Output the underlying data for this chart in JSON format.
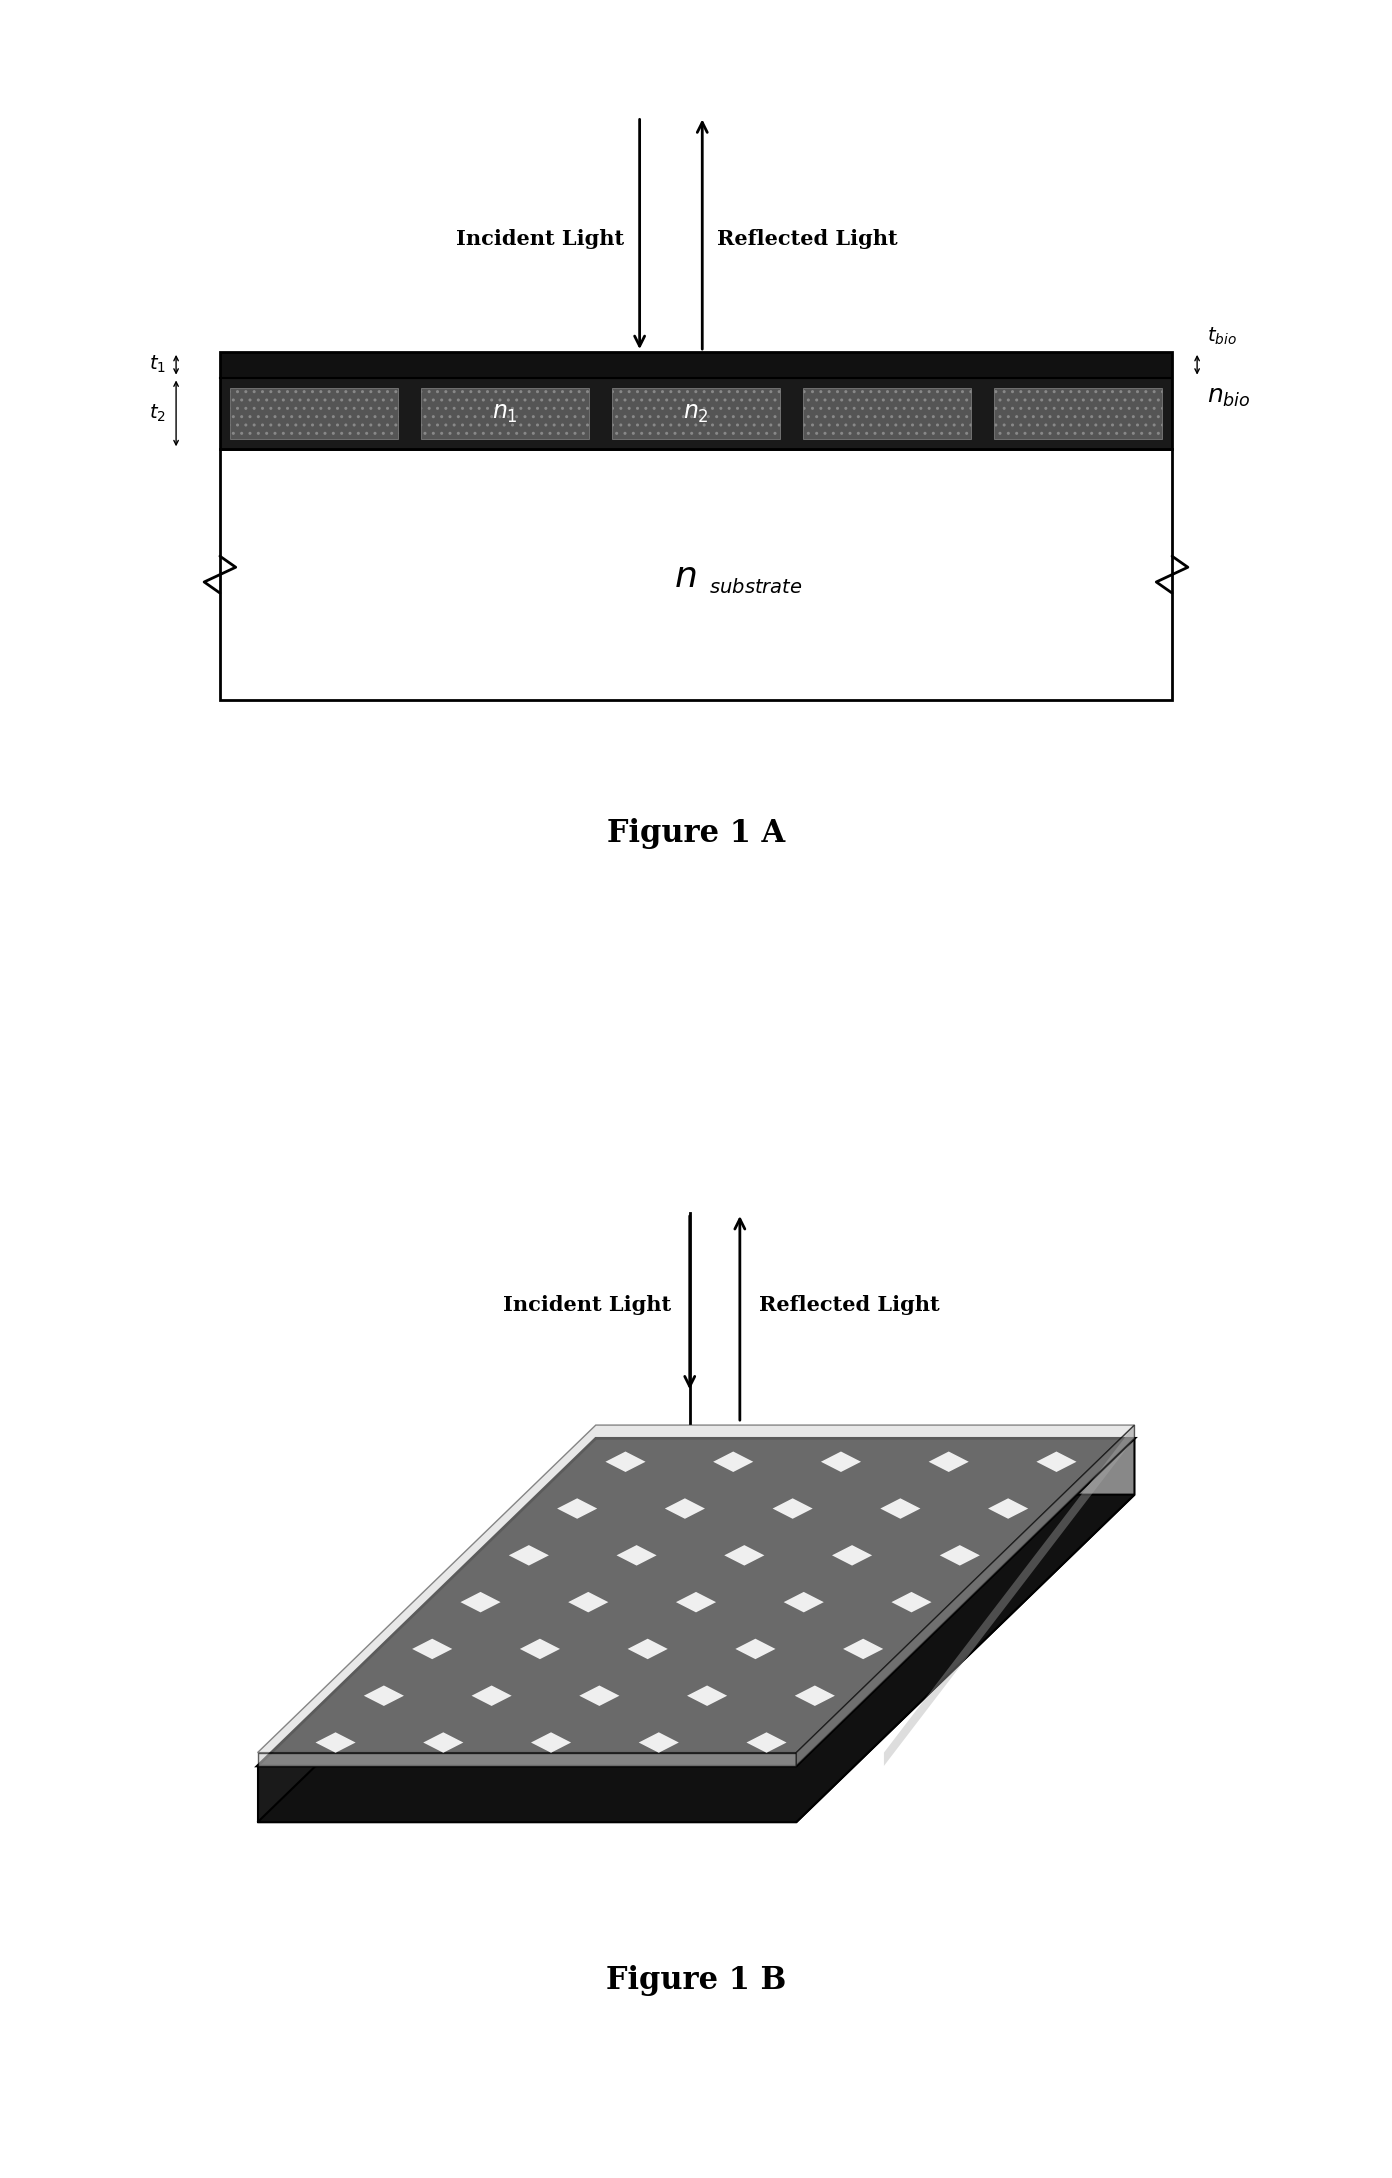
{
  "fig_width": 13.92,
  "fig_height": 21.78,
  "bg_color": "#ffffff",
  "fig1A": {
    "title": "Figure 1 A",
    "incident_light_label": "Incident Light",
    "reflected_light_label": "Reflected Light",
    "t_bio_label": "$t_{bio}$",
    "n_bio_label": "$n_{bio}$",
    "t1_label": "$t_1$",
    "t2_label": "$t_2$",
    "n_substrate_label": "$n_{substrate}$",
    "n1_label": "$n_1$",
    "n2_label": "$n_2$"
  },
  "fig1B": {
    "title": "Figure 1 B",
    "incident_light_label": "Incident Light",
    "reflected_light_label": "Reflected Light"
  }
}
